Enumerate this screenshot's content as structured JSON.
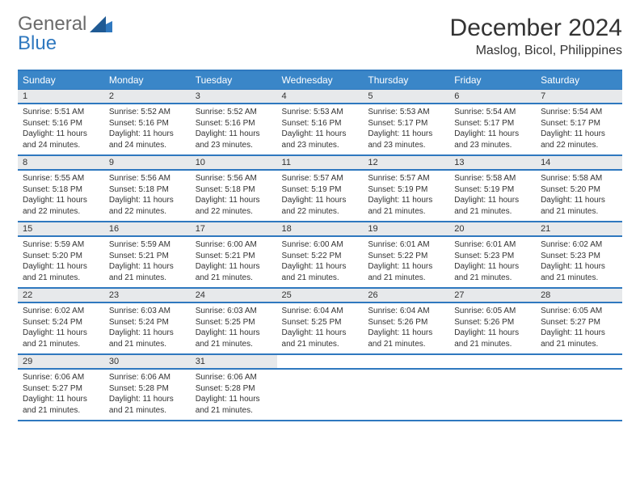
{
  "logo": {
    "word1": "General",
    "word2": "Blue"
  },
  "title": "December 2024",
  "location": "Maslog, Bicol, Philippines",
  "colors": {
    "header_bg": "#3a86c8",
    "border": "#2f78bf",
    "daynum_bg": "#e7e9eb",
    "text": "#333333",
    "logo_gray": "#6b6b6b",
    "logo_blue": "#2f78bf",
    "page_bg": "#ffffff"
  },
  "fonts": {
    "title_size": 30,
    "location_size": 16,
    "day_header_size": 12,
    "body_size": 10
  },
  "day_headers": [
    "Sunday",
    "Monday",
    "Tuesday",
    "Wednesday",
    "Thursday",
    "Friday",
    "Saturday"
  ],
  "weeks": [
    [
      {
        "n": "1",
        "sunrise": "5:51 AM",
        "sunset": "5:16 PM",
        "dl1": "Daylight: 11 hours",
        "dl2": "and 24 minutes."
      },
      {
        "n": "2",
        "sunrise": "5:52 AM",
        "sunset": "5:16 PM",
        "dl1": "Daylight: 11 hours",
        "dl2": "and 24 minutes."
      },
      {
        "n": "3",
        "sunrise": "5:52 AM",
        "sunset": "5:16 PM",
        "dl1": "Daylight: 11 hours",
        "dl2": "and 23 minutes."
      },
      {
        "n": "4",
        "sunrise": "5:53 AM",
        "sunset": "5:16 PM",
        "dl1": "Daylight: 11 hours",
        "dl2": "and 23 minutes."
      },
      {
        "n": "5",
        "sunrise": "5:53 AM",
        "sunset": "5:17 PM",
        "dl1": "Daylight: 11 hours",
        "dl2": "and 23 minutes."
      },
      {
        "n": "6",
        "sunrise": "5:54 AM",
        "sunset": "5:17 PM",
        "dl1": "Daylight: 11 hours",
        "dl2": "and 23 minutes."
      },
      {
        "n": "7",
        "sunrise": "5:54 AM",
        "sunset": "5:17 PM",
        "dl1": "Daylight: 11 hours",
        "dl2": "and 22 minutes."
      }
    ],
    [
      {
        "n": "8",
        "sunrise": "5:55 AM",
        "sunset": "5:18 PM",
        "dl1": "Daylight: 11 hours",
        "dl2": "and 22 minutes."
      },
      {
        "n": "9",
        "sunrise": "5:56 AM",
        "sunset": "5:18 PM",
        "dl1": "Daylight: 11 hours",
        "dl2": "and 22 minutes."
      },
      {
        "n": "10",
        "sunrise": "5:56 AM",
        "sunset": "5:18 PM",
        "dl1": "Daylight: 11 hours",
        "dl2": "and 22 minutes."
      },
      {
        "n": "11",
        "sunrise": "5:57 AM",
        "sunset": "5:19 PM",
        "dl1": "Daylight: 11 hours",
        "dl2": "and 22 minutes."
      },
      {
        "n": "12",
        "sunrise": "5:57 AM",
        "sunset": "5:19 PM",
        "dl1": "Daylight: 11 hours",
        "dl2": "and 21 minutes."
      },
      {
        "n": "13",
        "sunrise": "5:58 AM",
        "sunset": "5:19 PM",
        "dl1": "Daylight: 11 hours",
        "dl2": "and 21 minutes."
      },
      {
        "n": "14",
        "sunrise": "5:58 AM",
        "sunset": "5:20 PM",
        "dl1": "Daylight: 11 hours",
        "dl2": "and 21 minutes."
      }
    ],
    [
      {
        "n": "15",
        "sunrise": "5:59 AM",
        "sunset": "5:20 PM",
        "dl1": "Daylight: 11 hours",
        "dl2": "and 21 minutes."
      },
      {
        "n": "16",
        "sunrise": "5:59 AM",
        "sunset": "5:21 PM",
        "dl1": "Daylight: 11 hours",
        "dl2": "and 21 minutes."
      },
      {
        "n": "17",
        "sunrise": "6:00 AM",
        "sunset": "5:21 PM",
        "dl1": "Daylight: 11 hours",
        "dl2": "and 21 minutes."
      },
      {
        "n": "18",
        "sunrise": "6:00 AM",
        "sunset": "5:22 PM",
        "dl1": "Daylight: 11 hours",
        "dl2": "and 21 minutes."
      },
      {
        "n": "19",
        "sunrise": "6:01 AM",
        "sunset": "5:22 PM",
        "dl1": "Daylight: 11 hours",
        "dl2": "and 21 minutes."
      },
      {
        "n": "20",
        "sunrise": "6:01 AM",
        "sunset": "5:23 PM",
        "dl1": "Daylight: 11 hours",
        "dl2": "and 21 minutes."
      },
      {
        "n": "21",
        "sunrise": "6:02 AM",
        "sunset": "5:23 PM",
        "dl1": "Daylight: 11 hours",
        "dl2": "and 21 minutes."
      }
    ],
    [
      {
        "n": "22",
        "sunrise": "6:02 AM",
        "sunset": "5:24 PM",
        "dl1": "Daylight: 11 hours",
        "dl2": "and 21 minutes."
      },
      {
        "n": "23",
        "sunrise": "6:03 AM",
        "sunset": "5:24 PM",
        "dl1": "Daylight: 11 hours",
        "dl2": "and 21 minutes."
      },
      {
        "n": "24",
        "sunrise": "6:03 AM",
        "sunset": "5:25 PM",
        "dl1": "Daylight: 11 hours",
        "dl2": "and 21 minutes."
      },
      {
        "n": "25",
        "sunrise": "6:04 AM",
        "sunset": "5:25 PM",
        "dl1": "Daylight: 11 hours",
        "dl2": "and 21 minutes."
      },
      {
        "n": "26",
        "sunrise": "6:04 AM",
        "sunset": "5:26 PM",
        "dl1": "Daylight: 11 hours",
        "dl2": "and 21 minutes."
      },
      {
        "n": "27",
        "sunrise": "6:05 AM",
        "sunset": "5:26 PM",
        "dl1": "Daylight: 11 hours",
        "dl2": "and 21 minutes."
      },
      {
        "n": "28",
        "sunrise": "6:05 AM",
        "sunset": "5:27 PM",
        "dl1": "Daylight: 11 hours",
        "dl2": "and 21 minutes."
      }
    ],
    [
      {
        "n": "29",
        "sunrise": "6:06 AM",
        "sunset": "5:27 PM",
        "dl1": "Daylight: 11 hours",
        "dl2": "and 21 minutes."
      },
      {
        "n": "30",
        "sunrise": "6:06 AM",
        "sunset": "5:28 PM",
        "dl1": "Daylight: 11 hours",
        "dl2": "and 21 minutes."
      },
      {
        "n": "31",
        "sunrise": "6:06 AM",
        "sunset": "5:28 PM",
        "dl1": "Daylight: 11 hours",
        "dl2": "and 21 minutes."
      },
      null,
      null,
      null,
      null
    ]
  ]
}
